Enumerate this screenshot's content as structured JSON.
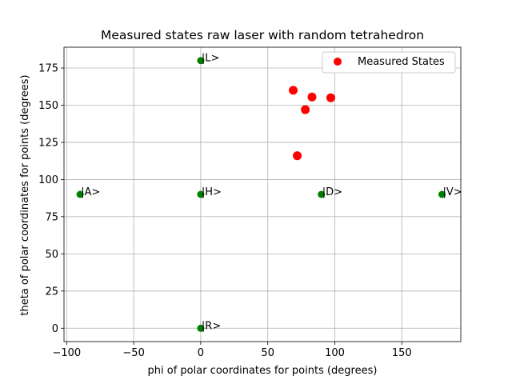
{
  "chart_data": {
    "type": "scatter",
    "title": "Measured states raw laser with random tetrahedron",
    "xlabel": "phi of polar coordinates for points (degrees)",
    "ylabel": "theta of polar coordinates for points (degrees)",
    "xlim": [
      -102,
      194
    ],
    "ylim": [
      -9,
      189
    ],
    "xticks": [
      -100,
      -50,
      0,
      50,
      100,
      150
    ],
    "yticks": [
      0,
      25,
      50,
      75,
      100,
      125,
      150,
      175
    ],
    "grid": true,
    "legend_position": "top-right",
    "reference_points": {
      "color": "#008000",
      "points": [
        {
          "label": "|L>",
          "x": 0,
          "y": 180
        },
        {
          "label": "|A>",
          "x": -90,
          "y": 90
        },
        {
          "label": "|H>",
          "x": 0,
          "y": 90
        },
        {
          "label": "|D>",
          "x": 90,
          "y": 90
        },
        {
          "label": "|V>",
          "x": 180,
          "y": 90
        },
        {
          "label": "|R>",
          "x": 0,
          "y": 0
        }
      ]
    },
    "series": [
      {
        "name": "Measured States",
        "color": "#ff0000",
        "points": [
          {
            "x": 69,
            "y": 160
          },
          {
            "x": 83,
            "y": 155.5
          },
          {
            "x": 97,
            "y": 155
          },
          {
            "x": 78,
            "y": 147
          },
          {
            "x": 72,
            "y": 116
          }
        ]
      }
    ]
  }
}
